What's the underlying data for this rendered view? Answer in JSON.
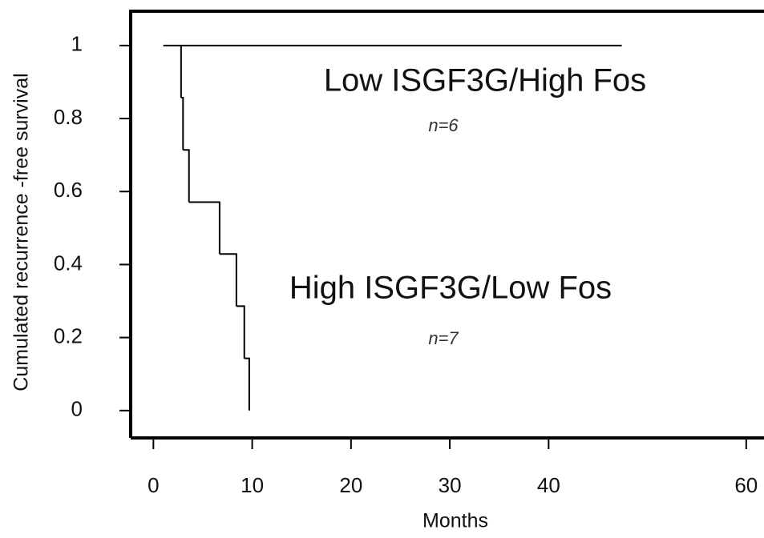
{
  "chart_data": {
    "type": "step",
    "x_label": "Months",
    "y_label": "Cumulated recurrence -free survival",
    "annotations": [
      "Low ISGF3G/High Fos",
      "n=6",
      "High ISGF3G/Low Fos",
      "n=7"
    ],
    "series": [
      {
        "name": "Low ISGF3G/High Fos",
        "color": "#000000",
        "x": [
          1,
          47.4
        ],
        "values": [
          1,
          1
        ]
      },
      {
        "name": "High ISGF3G/Low Fos",
        "color": "#000000",
        "x": [
          2.8,
          2.8,
          3.0,
          3.6,
          6.7,
          8.4,
          9.2,
          9.7
        ],
        "values": [
          1,
          0.857,
          0.714,
          0.571,
          0.429,
          0.286,
          0.143,
          0
        ]
      }
    ],
    "xlim": [
      -2.3,
      61.8
    ],
    "xticks": [
      0,
      10,
      20,
      30,
      40,
      60
    ],
    "ylim": [
      -0.075,
      1.094
    ],
    "yticks": [
      0,
      0.2,
      0.4,
      0.6,
      0.8,
      1
    ]
  }
}
